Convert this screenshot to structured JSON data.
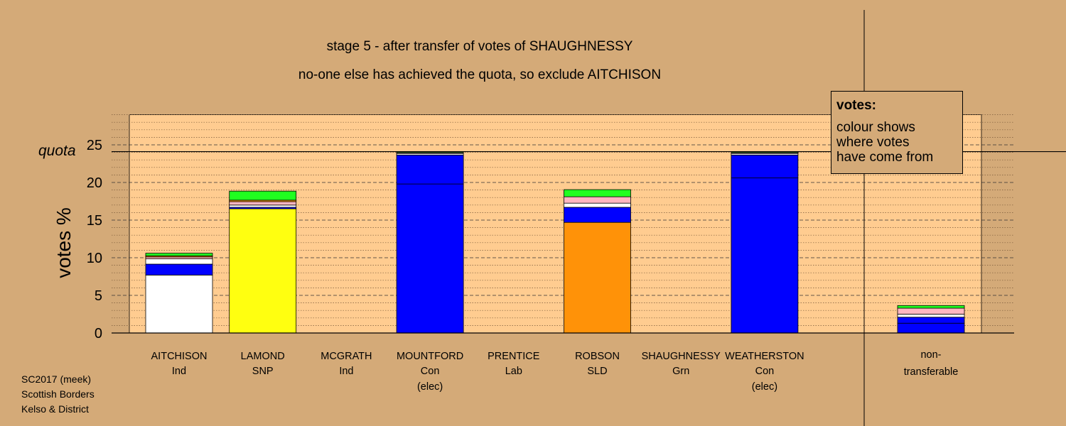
{
  "chart_data": {
    "type": "bar",
    "stacked": true,
    "title": "stage 5 - after transfer of votes of SHAUGHNESSY",
    "subtitle": "no-one else has achieved the quota, so exclude AITCHISON",
    "ylabel": "votes %",
    "ylim": [
      0,
      29
    ],
    "yticks": [
      0,
      5,
      10,
      15,
      20,
      25
    ],
    "grid": true,
    "quota": {
      "label": "quota",
      "value": 24.1
    },
    "legend": {
      "title": "votes:",
      "text": "colour shows\nwhere votes\nhave come from",
      "placement": "top-right"
    },
    "colors": {
      "Ind_A": "#ffffff",
      "SNP": "#ffff10",
      "Con": "#0000ff",
      "SLD": "#ff9208",
      "Grn": "#20ff20",
      "Lab": "#ffb6c1",
      "Ind_M": "#ffffff"
    },
    "candidates": [
      {
        "name": "AITCHISON",
        "party": "Ind",
        "note": "",
        "segments": [
          {
            "from": "Ind_A",
            "value": 7.7
          },
          {
            "from": "Con",
            "value": 1.45
          },
          {
            "from": "Ind_M",
            "value": 0.7
          },
          {
            "from": "Lab",
            "value": 0.25
          },
          {
            "from": "SLD",
            "value": 0.15
          },
          {
            "from": "Grn",
            "value": 0.35
          }
        ]
      },
      {
        "name": "LAMOND",
        "party": "SNP",
        "note": "",
        "segments": [
          {
            "from": "SNP",
            "value": 16.5
          },
          {
            "from": "Con",
            "value": 0.2
          },
          {
            "from": "Ind_M",
            "value": 0.3
          },
          {
            "from": "Lab",
            "value": 0.45
          },
          {
            "from": "SLD",
            "value": 0.2
          },
          {
            "from": "Grn",
            "value": 1.2
          }
        ]
      },
      {
        "name": "MCGRATH",
        "party": "Ind",
        "note": "",
        "segments": []
      },
      {
        "name": "MOUNTFORD",
        "party": "Con",
        "note": "(elec)",
        "segments": [
          {
            "from": "Con",
            "value": 19.8
          },
          {
            "from": "Con",
            "value": 3.85
          },
          {
            "from": "Ind_M",
            "value": 0.2
          },
          {
            "from": "Lab",
            "value": 0.1
          },
          {
            "from": "Grn",
            "value": 0.1
          }
        ]
      },
      {
        "name": "PRENTICE",
        "party": "Lab",
        "note": "",
        "segments": []
      },
      {
        "name": "ROBSON",
        "party": "SLD",
        "note": "",
        "segments": [
          {
            "from": "SLD",
            "value": 14.7
          },
          {
            "from": "Con",
            "value": 2.0
          },
          {
            "from": "Ind_M",
            "value": 0.55
          },
          {
            "from": "Lab",
            "value": 0.85
          },
          {
            "from": "Grn",
            "value": 0.95
          }
        ]
      },
      {
        "name": "SHAUGHNESSY",
        "party": "Grn",
        "note": "",
        "segments": []
      },
      {
        "name": "WEATHERSTON",
        "party": "Con",
        "note": "(elec)",
        "segments": [
          {
            "from": "Con",
            "value": 20.6
          },
          {
            "from": "Con",
            "value": 3.05
          },
          {
            "from": "Ind_M",
            "value": 0.2
          },
          {
            "from": "Lab",
            "value": 0.1
          },
          {
            "from": "Grn",
            "value": 0.1
          }
        ]
      }
    ],
    "nontransferable": {
      "label1": "non-",
      "label2": "transferable",
      "segments": [
        {
          "from": "Con",
          "value": 1.3
        },
        {
          "from": "Con",
          "value": 0.8
        },
        {
          "from": "Ind_M",
          "value": 0.4
        },
        {
          "from": "Lab",
          "value": 0.8
        },
        {
          "from": "Grn",
          "value": 0.35
        }
      ]
    }
  },
  "footer": {
    "line1": "SC2017 (meek)",
    "line2": "Scottish Borders",
    "line3": "Kelso & District"
  }
}
